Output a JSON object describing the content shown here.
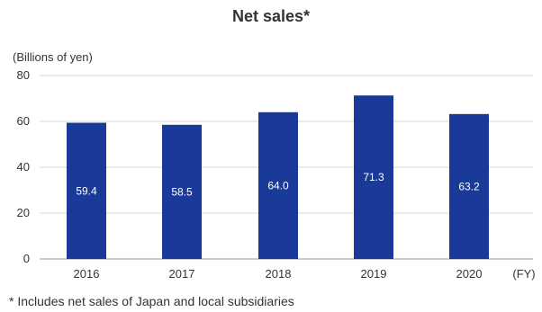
{
  "chart_data": {
    "type": "bar",
    "title": "Net sales*",
    "ylabel": "(Billions of yen)",
    "xlabel_suffix": "(FY)",
    "categories": [
      "2016",
      "2017",
      "2018",
      "2019",
      "2020"
    ],
    "values": [
      59.4,
      58.5,
      64.0,
      71.3,
      63.2
    ],
    "data_labels": [
      "59.4",
      "58.5",
      "64.0",
      "71.3",
      "63.2"
    ],
    "ylim": [
      0,
      80
    ],
    "yticks": [
      "0",
      "20",
      "40",
      "60",
      "80"
    ],
    "grid": true,
    "bar_color": "#1a3a9a",
    "grid_color": "#d9d9d9",
    "footnote": "* Includes net sales of Japan and local subsidiaries"
  }
}
